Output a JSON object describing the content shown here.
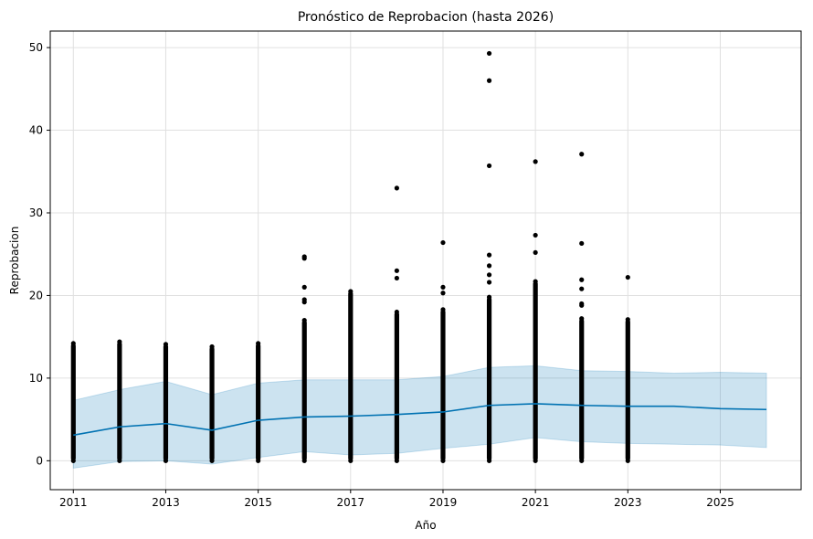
{
  "chart_data": {
    "type": "scatter",
    "title": "Pronóstico de Reprobacion (hasta 2026)",
    "xlabel": "Año",
    "ylabel": "Reprobacion",
    "xlim": [
      2010.5,
      2026.75
    ],
    "ylim": [
      -3.5,
      52
    ],
    "x_ticks": [
      2011,
      2013,
      2015,
      2017,
      2019,
      2021,
      2023,
      2025
    ],
    "y_ticks": [
      0,
      10,
      20,
      30,
      40,
      50
    ],
    "grid": true,
    "colors": {
      "forecast_line": "#0072B2",
      "uncertainty_band": "#0072B2",
      "observed_points": "#000000",
      "grid": "#e0e0e0"
    },
    "forecast": {
      "x": [
        2011,
        2012,
        2013,
        2014,
        2015,
        2016,
        2017,
        2018,
        2019,
        2020,
        2021,
        2022,
        2023,
        2024,
        2025,
        2026
      ],
      "yhat": [
        3.1,
        4.1,
        4.5,
        3.7,
        4.9,
        5.3,
        5.4,
        5.6,
        5.9,
        6.7,
        6.9,
        6.7,
        6.6,
        6.6,
        6.3,
        6.2
      ],
      "yhat_lower": [
        -0.9,
        -0.1,
        0.0,
        -0.4,
        0.4,
        1.1,
        0.7,
        0.9,
        1.5,
        2.0,
        2.8,
        2.3,
        2.1,
        2.0,
        1.9,
        1.6
      ],
      "yhat_upper": [
        7.3,
        8.6,
        9.6,
        8.0,
        9.4,
        9.8,
        9.8,
        9.8,
        10.2,
        11.3,
        11.5,
        10.9,
        10.8,
        10.6,
        10.7,
        10.6
      ]
    },
    "observed": {
      "x": [
        2011,
        2012,
        2013,
        2014,
        2015,
        2016,
        2017,
        2018,
        2019,
        2020,
        2021,
        2022,
        2023
      ],
      "dense_max": [
        14.2,
        14.4,
        14.1,
        13.8,
        14.2,
        17.0,
        20.5,
        18.0,
        18.3,
        19.8,
        21.7,
        17.2,
        17.1
      ],
      "outliers": [
        {
          "x": 2016,
          "y": 24.5
        },
        {
          "x": 2016,
          "y": 24.7
        },
        {
          "x": 2016,
          "y": 21.0
        },
        {
          "x": 2016,
          "y": 19.5
        },
        {
          "x": 2016,
          "y": 19.2
        },
        {
          "x": 2018,
          "y": 33.0
        },
        {
          "x": 2018,
          "y": 23.0
        },
        {
          "x": 2018,
          "y": 22.1
        },
        {
          "x": 2019,
          "y": 26.4
        },
        {
          "x": 2019,
          "y": 21.0
        },
        {
          "x": 2019,
          "y": 20.3
        },
        {
          "x": 2020,
          "y": 49.3
        },
        {
          "x": 2020,
          "y": 46.0
        },
        {
          "x": 2020,
          "y": 35.7
        },
        {
          "x": 2020,
          "y": 24.9
        },
        {
          "x": 2020,
          "y": 23.6
        },
        {
          "x": 2020,
          "y": 22.5
        },
        {
          "x": 2020,
          "y": 21.6
        },
        {
          "x": 2021,
          "y": 36.2
        },
        {
          "x": 2021,
          "y": 27.3
        },
        {
          "x": 2021,
          "y": 25.2
        },
        {
          "x": 2022,
          "y": 37.1
        },
        {
          "x": 2022,
          "y": 26.3
        },
        {
          "x": 2022,
          "y": 21.9
        },
        {
          "x": 2022,
          "y": 20.8
        },
        {
          "x": 2022,
          "y": 19.0
        },
        {
          "x": 2022,
          "y": 18.8
        },
        {
          "x": 2023,
          "y": 22.2
        }
      ]
    }
  }
}
